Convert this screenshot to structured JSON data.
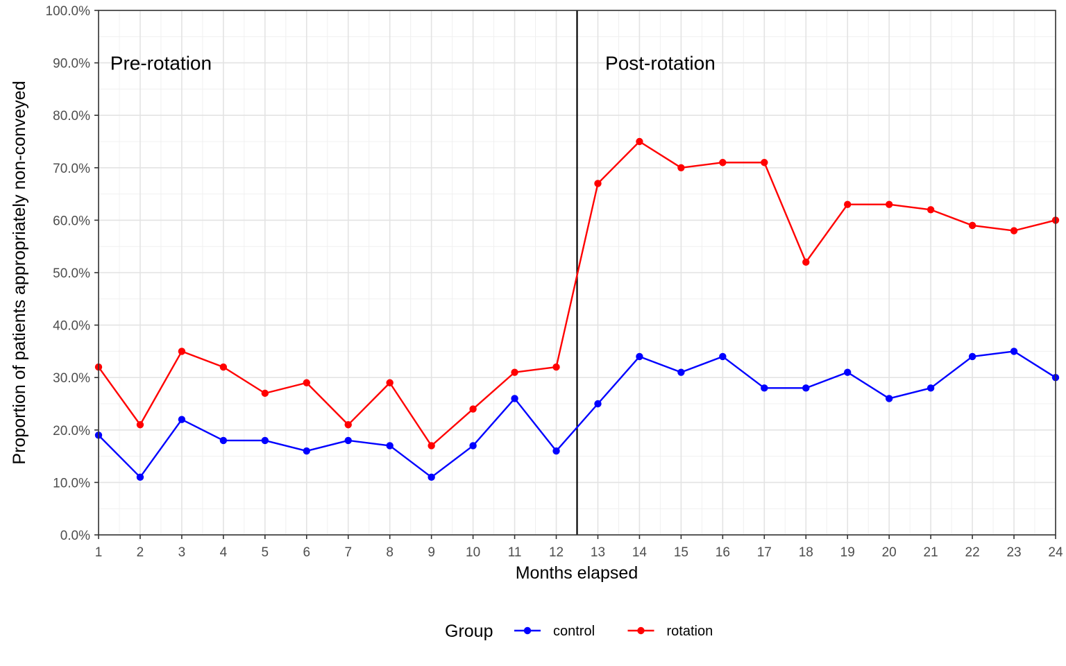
{
  "chart_data": {
    "type": "line",
    "title": "",
    "xlabel": "Months elapsed",
    "ylabel": "Proportion of patients appropriately non-conveyed",
    "x": [
      1,
      2,
      3,
      4,
      5,
      6,
      7,
      8,
      9,
      10,
      11,
      12,
      13,
      14,
      15,
      16,
      17,
      18,
      19,
      20,
      21,
      22,
      23,
      24
    ],
    "xlim": [
      1,
      24
    ],
    "ylim": [
      0,
      100
    ],
    "y_unit": "%",
    "yticks": [
      "0.0%",
      "10.0%",
      "20.0%",
      "30.0%",
      "40.0%",
      "50.0%",
      "60.0%",
      "70.0%",
      "80.0%",
      "90.0%",
      "100.0%"
    ],
    "grid": true,
    "legend": {
      "title": "Group",
      "placement": "bottom"
    },
    "series": [
      {
        "name": "control",
        "color": "#0000ff",
        "values": [
          19,
          11,
          22,
          18,
          18,
          16,
          18,
          17,
          11,
          17,
          26,
          16,
          25,
          34,
          31,
          34,
          28,
          28,
          31,
          26,
          28,
          34,
          35,
          30
        ]
      },
      {
        "name": "rotation",
        "color": "#ff0000",
        "values": [
          32,
          21,
          35,
          32,
          27,
          29,
          21,
          29,
          17,
          24,
          31,
          32,
          67,
          75,
          70,
          71,
          71,
          52,
          63,
          63,
          62,
          59,
          58,
          60
        ]
      }
    ],
    "vline": {
      "x": 12.5,
      "color": "#000000"
    },
    "annotations": [
      {
        "text": "Pre-rotation",
        "x": 2.5,
        "y": 90
      },
      {
        "text": "Post-rotation",
        "x": 14.5,
        "y": 90
      }
    ]
  }
}
